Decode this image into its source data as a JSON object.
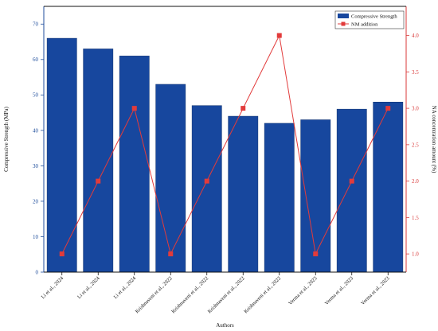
{
  "chart_data": {
    "type": "bar",
    "categories": [
      "Li et al., 2024",
      "Li et al., 2024",
      "Li et al., 2024",
      "Krishnaveni et al., 2022",
      "Krishnaveni et al., 2022",
      "Krishnaveni et al., 2022",
      "Krishnaveni et al., 2022",
      "Verma et al., 2023",
      "Verma et al., 2023",
      "Verma et al., 2023"
    ],
    "series": [
      {
        "name": "Compressive Strength",
        "type": "bar",
        "axis": "left",
        "color": "#17479e",
        "values": [
          66,
          63,
          61,
          53,
          47,
          44,
          42,
          43,
          46,
          48
        ]
      },
      {
        "name": "NM addition",
        "type": "line",
        "axis": "right",
        "color": "#e23b3b",
        "marker": "square",
        "values": [
          1.0,
          2.0,
          3.0,
          1.0,
          2.0,
          3.0,
          4.0,
          1.0,
          2.0,
          3.0
        ]
      }
    ],
    "xlabel": "Authors",
    "ylabel": "Compressive Strength (MPa)",
    "y2label": "NA concentration amount (%)",
    "ylim": [
      0,
      75
    ],
    "y2lim": [
      0.75,
      4.4
    ],
    "yticks": [
      "0",
      "10",
      "20",
      "30",
      "40",
      "50",
      "60",
      "70"
    ],
    "y2ticks": [
      "1.0",
      "1.5",
      "2.0",
      "2.5",
      "3.0",
      "3.5",
      "4.0"
    ],
    "grid": false,
    "legend": "top-right"
  }
}
